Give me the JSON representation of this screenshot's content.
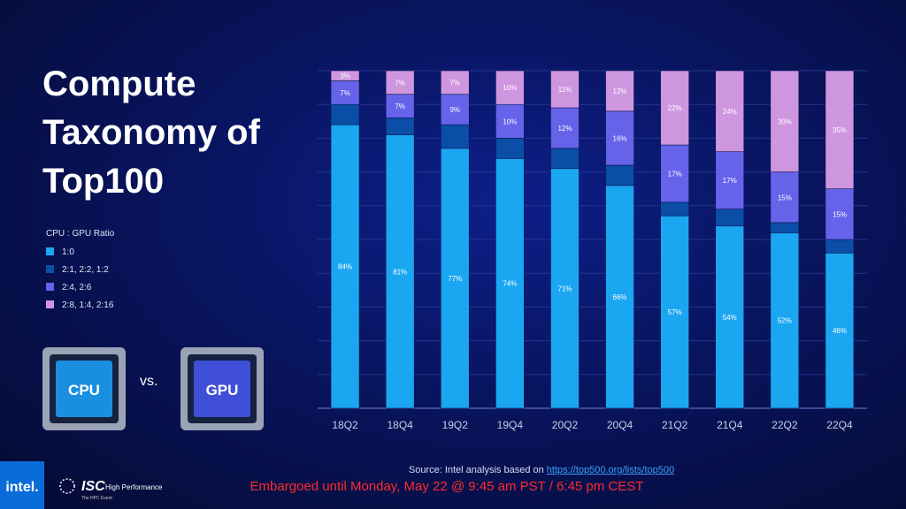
{
  "slide": {
    "title_lines": [
      "Compute",
      "Taxonomy of",
      "Top100"
    ],
    "chips": [
      "CPU",
      "GPU"
    ],
    "vs": "vs.",
    "source_prefix": "Source: Intel analysis based on ",
    "source_link": "https://top500.org/lists/top500",
    "embargo": "Embargoed until Monday, May 22 @ 9:45 am PST / 6:45 pm CEST",
    "intel_logo": "intel.",
    "isc_logo": "ISC",
    "isc_tagline": "High Performance",
    "isc_sub": "The HPC Event"
  },
  "chart_data": {
    "type": "stacked-bar",
    "legend_title": "CPU : GPU Ratio",
    "categories": [
      "18Q2",
      "18Q4",
      "19Q2",
      "19Q4",
      "20Q2",
      "20Q4",
      "21Q2",
      "21Q4",
      "22Q2",
      "22Q4"
    ],
    "series": [
      {
        "name": "1:0",
        "color": "#1ba6f2",
        "values": [
          84,
          81,
          77,
          74,
          71,
          66,
          57,
          54,
          52,
          46
        ],
        "value_labels": [
          "84%",
          "81%",
          "77%",
          "74%",
          "71%",
          "66%",
          "57%",
          "54%",
          "52%",
          "46%"
        ]
      },
      {
        "name": "2:1, 2:2, 1:2",
        "color": "#0b4ea8",
        "values": [
          6,
          5,
          7,
          6,
          6,
          6,
          4,
          5,
          3,
          4
        ]
      },
      {
        "name": "2:4, 2:6",
        "color": "#6563ea",
        "values": [
          7,
          7,
          9,
          10,
          12,
          16,
          17,
          17,
          15,
          15
        ],
        "value_labels": [
          "7%",
          "7%",
          "9%",
          "10%",
          "12%",
          "16%",
          "17%",
          "17%",
          "15%",
          "15%"
        ]
      },
      {
        "name": "2:8, 1:4, 2:16",
        "color": "#cf96e0",
        "values": [
          3,
          7,
          7,
          10,
          11,
          12,
          22,
          24,
          30,
          35
        ],
        "value_labels": [
          "3%",
          "7%",
          "7%",
          "10%",
          "11%",
          "12%",
          "22%",
          "24%",
          "30%",
          "35%"
        ]
      }
    ],
    "ylim": [
      0,
      100
    ],
    "yticks": [
      0,
      10,
      20,
      30,
      40,
      50,
      60,
      70,
      80,
      90,
      100
    ],
    "grid": true
  }
}
